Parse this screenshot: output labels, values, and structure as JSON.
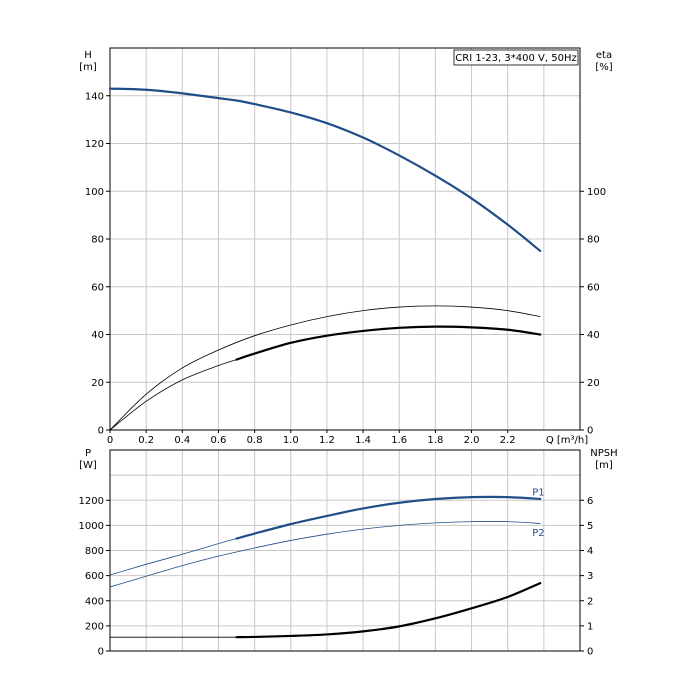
{
  "chart_data": [
    {
      "type": "line",
      "legend": "CRI 1-23, 3*400 V, 50Hz",
      "legend_placement": "top-right",
      "xlabel": "Q [m³/h]",
      "xlim": [
        0,
        2.6
      ],
      "xticks": [
        "0",
        "0.2",
        "0.4",
        "0.6",
        "0.8",
        "1.0",
        "1.2",
        "1.4",
        "1.6",
        "1.8",
        "2.0",
        "2.2"
      ],
      "grid": true,
      "left_axis": {
        "label_line1": "H",
        "label_line2": "[m]",
        "ylim": [
          0,
          160
        ],
        "ticks": [
          "0",
          "20",
          "40",
          "60",
          "80",
          "100",
          "120",
          "140"
        ]
      },
      "right_axis": {
        "label_line1": "eta",
        "label_line2": "[%]",
        "ylim": [
          0,
          160
        ],
        "ticks": [
          "0",
          "20",
          "40",
          "60",
          "80",
          "100"
        ]
      },
      "series": [
        {
          "axis": "left",
          "color": "#1f4e89",
          "width": 2.2,
          "x": [
            0,
            0.2,
            0.4,
            0.6,
            0.7,
            0.8,
            1.0,
            1.2,
            1.4,
            1.6,
            1.8,
            2.0,
            2.2,
            2.38
          ],
          "y": [
            143,
            142.5,
            141,
            139,
            138,
            136.5,
            133,
            128.5,
            122.5,
            115,
            106.5,
            97,
            86,
            75
          ]
        },
        {
          "axis": "right",
          "color": "#000000",
          "width": 0.8,
          "x": [
            0,
            0.2,
            0.4,
            0.6,
            0.8,
            1.0,
            1.2,
            1.4,
            1.6,
            1.8,
            2.0,
            2.2,
            2.38
          ],
          "y": [
            0,
            15,
            26,
            33.5,
            39.5,
            44,
            47.5,
            50,
            51.5,
            52,
            51.5,
            50,
            47.5
          ]
        },
        {
          "axis": "right",
          "color": "#000000",
          "width": 0.8,
          "x": [
            0,
            0.2,
            0.4,
            0.6,
            0.7
          ],
          "y": [
            0,
            12,
            21,
            27,
            29.5
          ]
        },
        {
          "axis": "right",
          "color": "#000000",
          "width": 2.2,
          "x": [
            0.7,
            0.8,
            1.0,
            1.2,
            1.4,
            1.6,
            1.8,
            2.0,
            2.2,
            2.38
          ],
          "y": [
            29.5,
            32,
            36.5,
            39.5,
            41.5,
            42.8,
            43.3,
            43,
            42,
            40
          ]
        }
      ]
    },
    {
      "type": "line",
      "xlim": [
        0,
        2.6
      ],
      "grid": true,
      "left_axis": {
        "label_line1": "P",
        "label_line2": "[W]",
        "ylim": [
          0,
          1600
        ],
        "ticks": [
          "0",
          "200",
          "400",
          "600",
          "800",
          "1000",
          "1200"
        ]
      },
      "right_axis": {
        "label_line1": "NPSH",
        "label_line2": "[m]",
        "ylim": [
          0,
          8
        ],
        "ticks": [
          "0",
          "1",
          "2",
          "3",
          "4",
          "5",
          "6"
        ]
      },
      "series_labels": [
        {
          "text": "P1",
          "x": 2.38,
          "y": 1200,
          "color": "#1f4e89"
        },
        {
          "text": "P2",
          "x": 2.38,
          "y": 1010,
          "color": "#1f4e89"
        }
      ],
      "series": [
        {
          "name": "P1",
          "axis": "left",
          "color": "#1f4e89",
          "width": 0.8,
          "x": [
            0,
            0.2,
            0.4,
            0.6,
            0.7
          ],
          "y": [
            605,
            690,
            770,
            855,
            895
          ]
        },
        {
          "name": "P1",
          "axis": "left",
          "color": "#1f4e89",
          "width": 2.2,
          "x": [
            0.7,
            0.8,
            1.0,
            1.2,
            1.4,
            1.6,
            1.8,
            2.0,
            2.2,
            2.38
          ],
          "y": [
            895,
            935,
            1010,
            1075,
            1135,
            1180,
            1210,
            1225,
            1225,
            1210
          ]
        },
        {
          "name": "P2",
          "axis": "left",
          "color": "#1f4e89",
          "width": 0.8,
          "x": [
            0,
            0.2,
            0.4,
            0.6,
            0.8,
            1.0,
            1.2,
            1.4,
            1.6,
            1.8,
            2.0,
            2.2,
            2.38
          ],
          "y": [
            510,
            595,
            680,
            755,
            820,
            880,
            930,
            970,
            1000,
            1020,
            1030,
            1030,
            1015
          ]
        },
        {
          "axis": "right",
          "color": "#000000",
          "width": 0.8,
          "x": [
            0,
            0.7
          ],
          "y": [
            0.55,
            0.55
          ]
        },
        {
          "axis": "right",
          "color": "#000000",
          "width": 2.2,
          "x": [
            0.7,
            0.8,
            1.0,
            1.2,
            1.4,
            1.6,
            1.8,
            2.0,
            2.2,
            2.38
          ],
          "y": [
            0.55,
            0.56,
            0.6,
            0.66,
            0.78,
            0.98,
            1.3,
            1.7,
            2.15,
            2.7
          ]
        }
      ]
    }
  ]
}
